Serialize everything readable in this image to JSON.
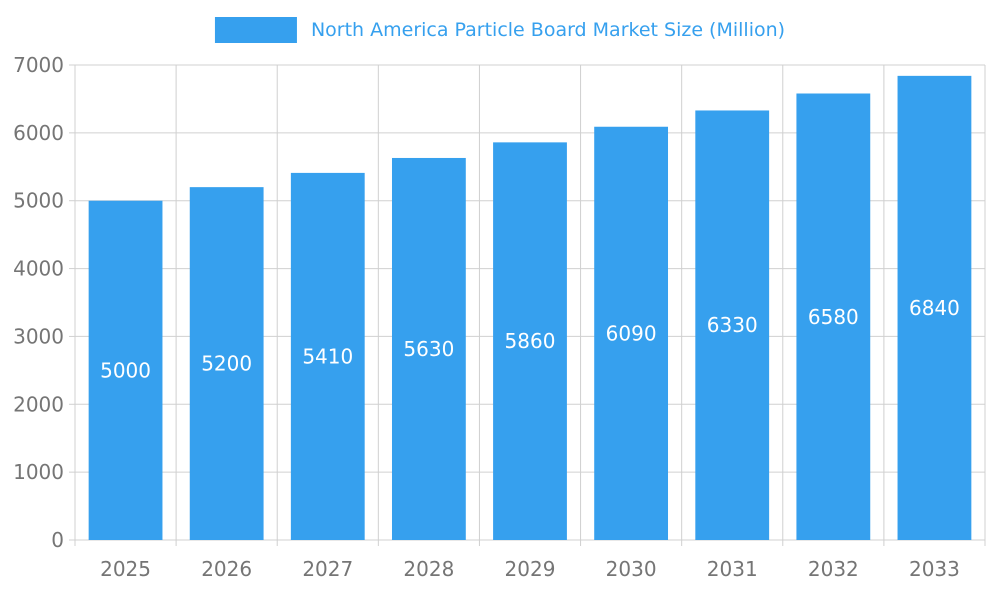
{
  "chart_data": {
    "type": "bar",
    "title": "North America Particle Board Market Size (Million)",
    "categories": [
      "2025",
      "2026",
      "2027",
      "2028",
      "2029",
      "2030",
      "2031",
      "2032",
      "2033"
    ],
    "values": [
      5000,
      5200,
      5410,
      5630,
      5860,
      6090,
      6330,
      6580,
      6840
    ],
    "series": [
      {
        "name": "North America Particle Board Market Size (Million)",
        "values": [
          5000,
          5200,
          5410,
          5630,
          5860,
          6090,
          6330,
          6580,
          6840
        ]
      }
    ],
    "xlabel": "",
    "ylabel": "",
    "ylim": [
      0,
      7000
    ],
    "ytick_step": 1000,
    "yticks": [
      "0",
      "1000",
      "2000",
      "3000",
      "4000",
      "5000",
      "6000",
      "7000"
    ],
    "grid": true,
    "legend_position": "top",
    "bar_label_position": "inside-middle",
    "colors": {
      "bar": "#36A0EE",
      "bar_label": "#ffffff",
      "axis_label": "#757575",
      "grid_line": "#d0d0d0",
      "legend_text": "#36A0EE"
    }
  }
}
